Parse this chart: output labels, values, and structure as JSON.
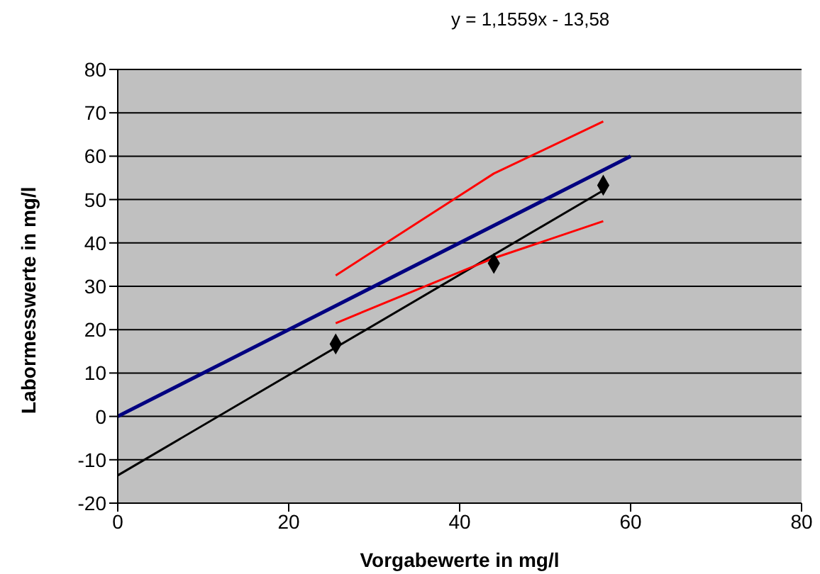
{
  "chart_data": {
    "type": "scatter",
    "xlabel": "Vorgabewerte in mg/l",
    "ylabel": "Labormesswerte in mg/l",
    "annotations": [
      "y = 1,1559x - 13,58"
    ],
    "xlim": [
      0,
      80
    ],
    "xticks": [
      0,
      20,
      40,
      60,
      80
    ],
    "ylim": [
      -20,
      80
    ],
    "yticks": [
      -20,
      -10,
      0,
      10,
      20,
      30,
      40,
      50,
      60,
      70,
      80
    ],
    "grid": "y",
    "series": [
      {
        "color": "#000000",
        "marker": "diamond",
        "x": [
          25.5,
          44,
          56.8
        ],
        "values": [
          16.7,
          35.3,
          53.3
        ]
      },
      {
        "type": "line",
        "color": "#000000",
        "x": [
          0,
          56.8
        ],
        "values": [
          -13.6,
          52.1
        ]
      },
      {
        "type": "line",
        "color": "#000080",
        "x": [
          0,
          60
        ],
        "values": [
          0,
          60
        ]
      },
      {
        "type": "line",
        "color": "#ff0000",
        "x": [
          25.5,
          44,
          56.8
        ],
        "values": [
          32.5,
          56,
          68
        ]
      },
      {
        "type": "line",
        "color": "#ff0000",
        "x": [
          25.5,
          44,
          56.8
        ],
        "values": [
          21.5,
          36.5,
          45
        ]
      }
    ]
  }
}
